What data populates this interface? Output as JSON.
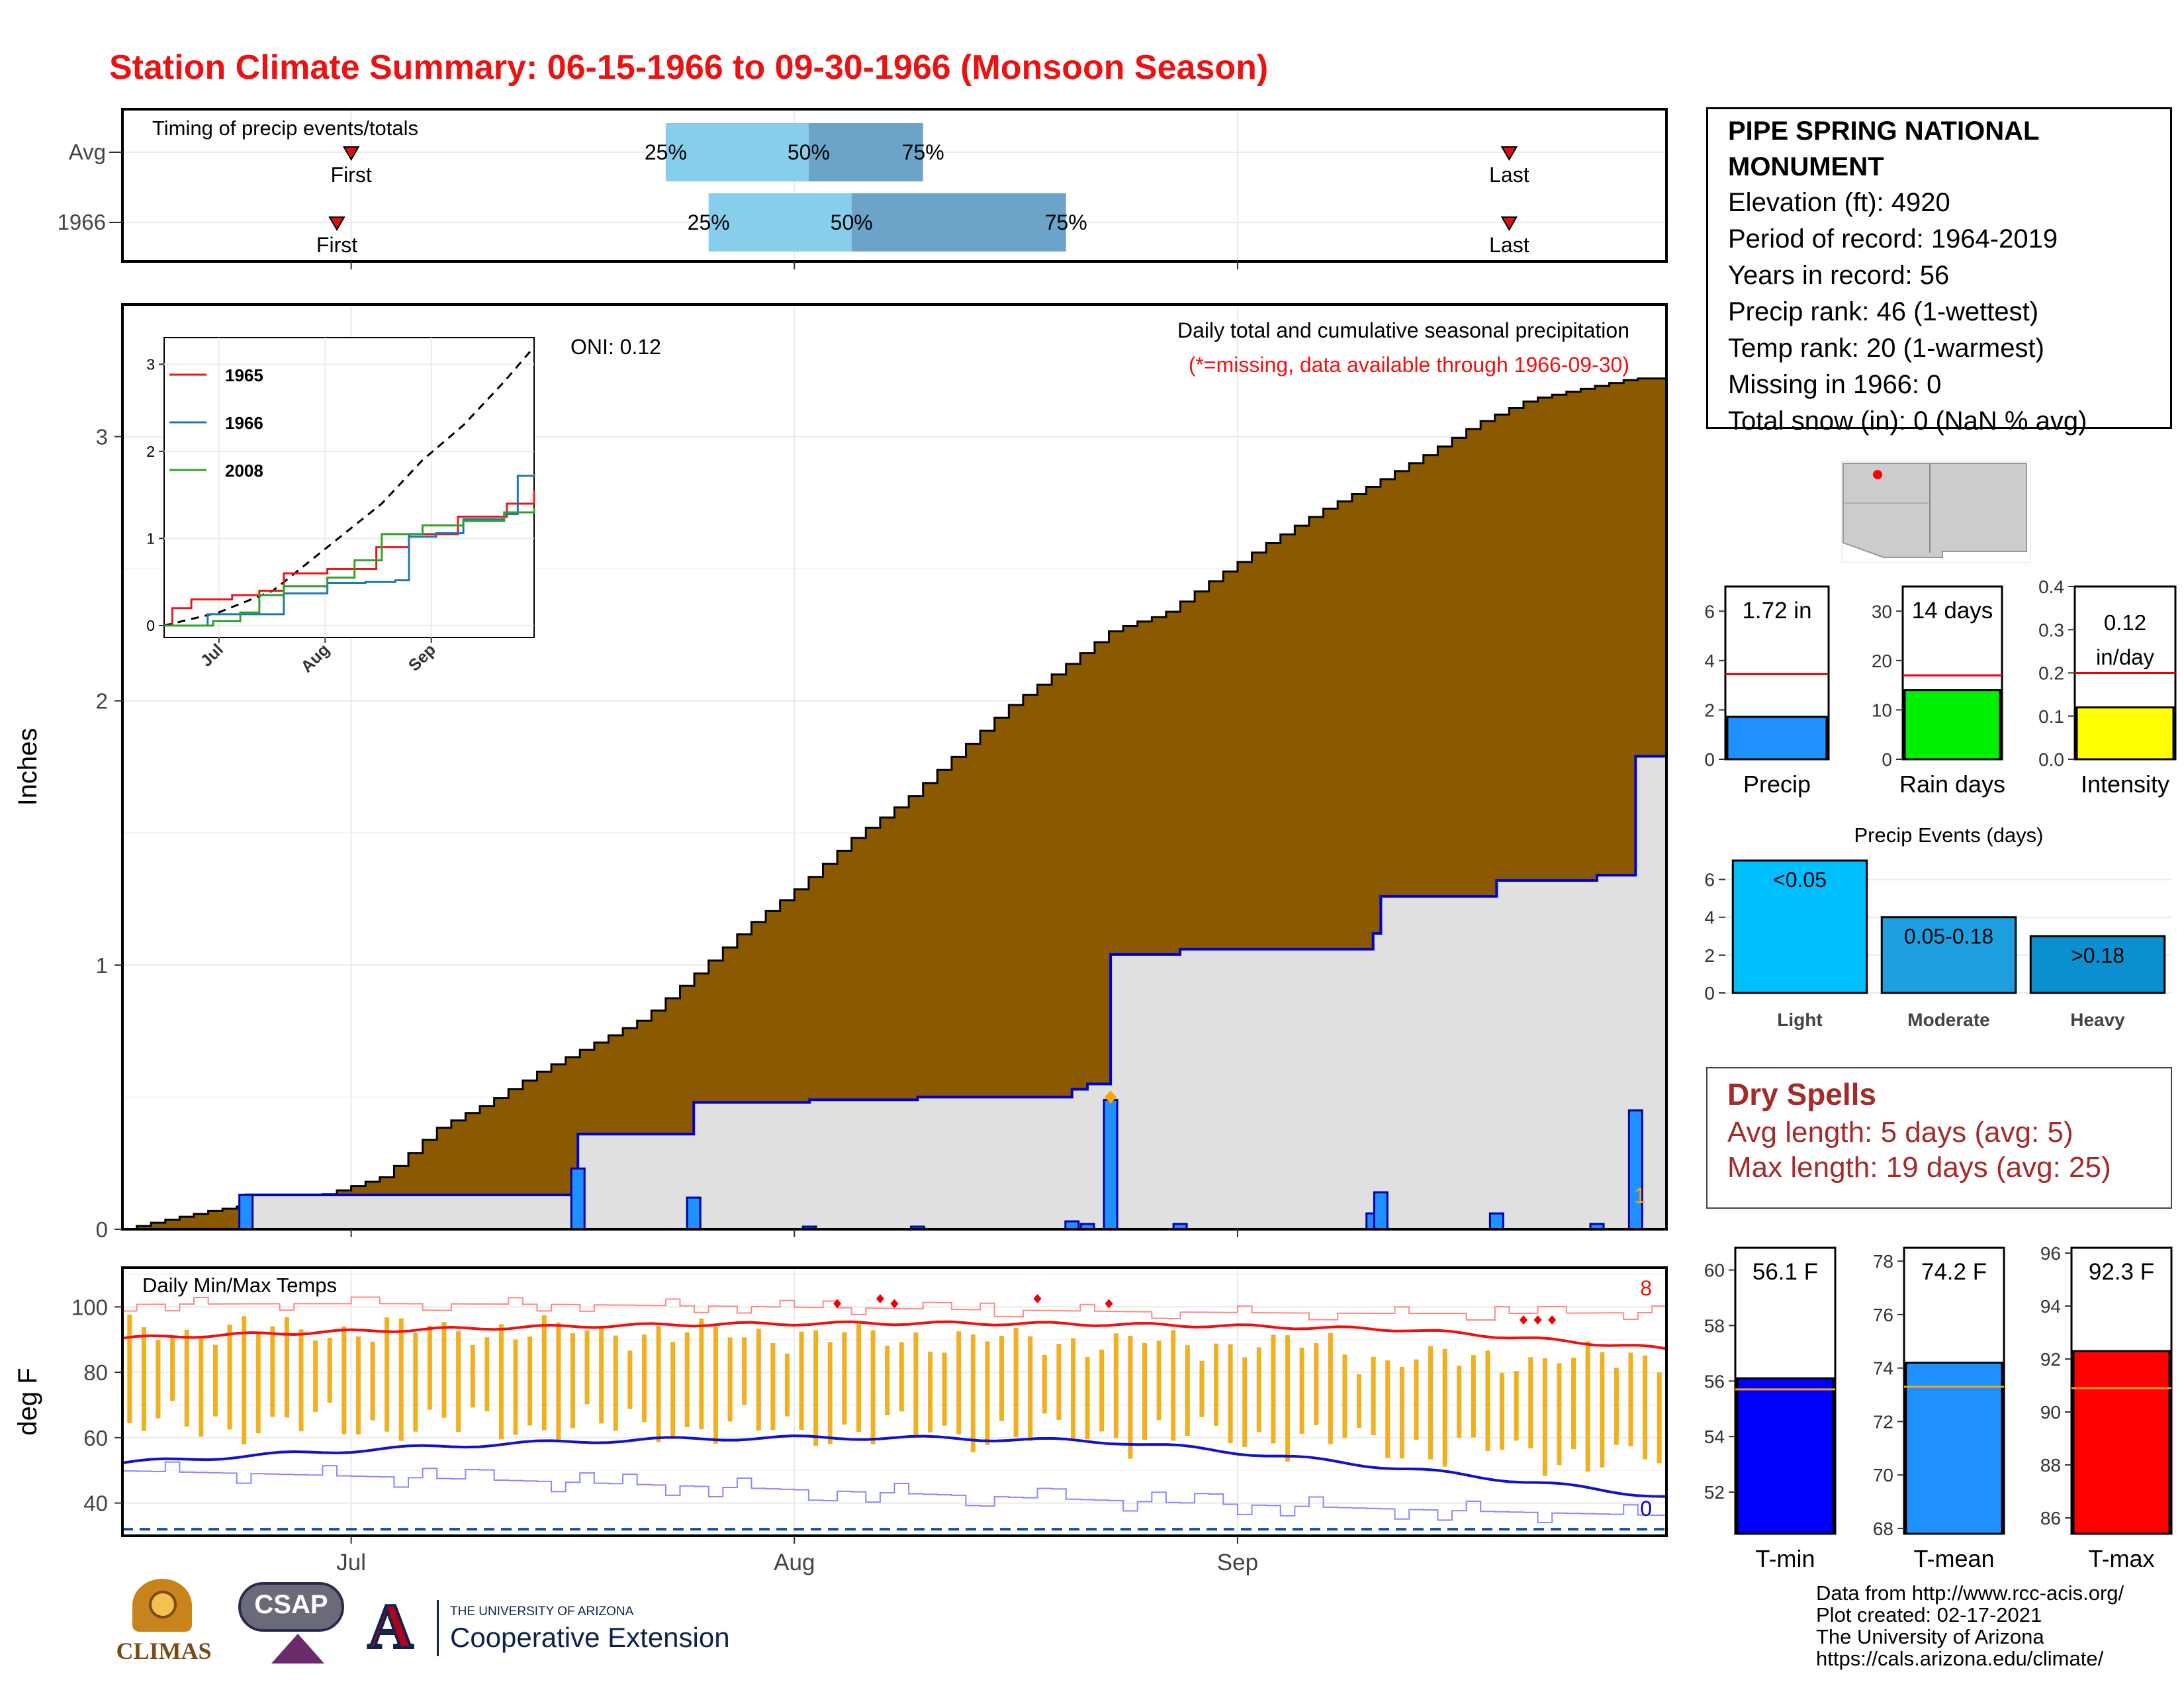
{
  "page": {
    "title": "Station Climate Summary: 06-15-1966 to 09-30-1966 (Monsoon Season)",
    "title_color": "#ee1111"
  },
  "chart_data": [
    {
      "id": "timing",
      "type": "bar",
      "title": "Timing of precip events/totals",
      "rows": [
        "Avg",
        "1966"
      ],
      "x_date_range": [
        "1966-06-15",
        "1966-09-30"
      ],
      "avg": {
        "first": "1966-07-01",
        "q25": "1966-07-23",
        "q50": "1966-08-02",
        "q75": "1966-08-10",
        "last": "1966-09-20"
      },
      "y1966": {
        "first": "1966-06-30",
        "q25": "1966-07-26",
        "q50": "1966-08-05",
        "q75": "1966-08-20",
        "last": "1966-09-20"
      },
      "labels": {
        "first": "First",
        "last": "Last",
        "q25": "25%",
        "q50": "50%",
        "q75": "75%"
      },
      "colors": {
        "light": "#87ceeb",
        "dark": "#6ba3c9",
        "marker": "#dd1111"
      }
    },
    {
      "id": "cumulative",
      "type": "area",
      "title": "Daily total and cumulative seasonal precipitation",
      "subtitle": "(*=missing, data available through 1966-09-30)",
      "oni_label": "ONI: 0.12",
      "ylabel": "Inches",
      "ylim": [
        0,
        3.5
      ],
      "yticks": [
        0,
        1,
        2,
        3
      ],
      "x_date_range": [
        "1966-06-15",
        "1966-09-30"
      ],
      "corner_value": "1",
      "avg_cumulative_knots": [
        [
          0,
          0
        ],
        [
          4,
          0.03
        ],
        [
          10,
          0.07
        ],
        [
          16,
          0.1
        ],
        [
          20,
          0.11
        ],
        [
          24,
          0.14
        ],
        [
          30,
          0.2
        ],
        [
          36,
          0.38
        ],
        [
          42,
          0.48
        ],
        [
          48,
          0.6
        ],
        [
          54,
          0.7
        ],
        [
          60,
          0.8
        ],
        [
          66,
          0.97
        ],
        [
          72,
          1.15
        ],
        [
          78,
          1.3
        ],
        [
          84,
          1.48
        ],
        [
          90,
          1.62
        ],
        [
          96,
          1.8
        ],
        [
          102,
          1.98
        ],
        [
          108,
          2.12
        ],
        [
          114,
          2.27
        ],
        [
          120,
          2.33
        ],
        [
          126,
          2.47
        ],
        [
          132,
          2.6
        ],
        [
          138,
          2.72
        ],
        [
          144,
          2.82
        ],
        [
          150,
          2.93
        ],
        [
          156,
          3.05
        ],
        [
          162,
          3.14
        ],
        [
          168,
          3.18
        ],
        [
          174,
          3.22
        ],
        [
          178,
          3.22
        ]
      ],
      "events_1966": [
        {
          "day": 16,
          "value": 0.13
        },
        {
          "day": 59,
          "value": 0.23
        },
        {
          "day": 74,
          "value": 0.12
        },
        {
          "day": 89,
          "value": 0.01
        },
        {
          "day": 103,
          "value": 0.01
        },
        {
          "day": 123,
          "value": 0.03
        },
        {
          "day": 125,
          "value": 0.02
        },
        {
          "day": 128,
          "value": 0.49
        },
        {
          "day": 137,
          "value": 0.02
        },
        {
          "day": 162,
          "value": 0.06
        },
        {
          "day": 163,
          "value": 0.14
        },
        {
          "day": 178,
          "value": 0.06
        },
        {
          "day": 191,
          "value": 0.02
        },
        {
          "day": 196,
          "value": 0.45
        }
      ],
      "missing_marker_day": 128,
      "colors": {
        "avg_fill": "#8b5a00",
        "year_fill": "#e0e0e0",
        "year_line": "#0000cc",
        "event_bar": "#1e90ff",
        "missing": "#ffa500"
      }
    },
    {
      "id": "inset",
      "type": "line",
      "x_labels": [
        "Jul",
        "Aug",
        "Sep"
      ],
      "yticks": [
        0,
        1,
        2,
        3
      ],
      "series": [
        {
          "name": "1965",
          "color": "#e31a1c",
          "knots": [
            [
              0,
              0
            ],
            [
              3,
              0.2
            ],
            [
              10,
              0.3
            ],
            [
              25,
              0.35
            ],
            [
              35,
              0.4
            ],
            [
              44,
              0.6
            ],
            [
              60,
              0.65
            ],
            [
              78,
              0.9
            ],
            [
              90,
              1.05
            ],
            [
              108,
              1.25
            ],
            [
              126,
              1.4
            ],
            [
              136,
              1.55
            ]
          ]
        },
        {
          "name": "1966",
          "color": "#1f78b4",
          "knots": [
            [
              0,
              0
            ],
            [
              16,
              0.13
            ],
            [
              35,
              0.13
            ],
            [
              44,
              0.37
            ],
            [
              60,
              0.49
            ],
            [
              74,
              0.5
            ],
            [
              85,
              0.52
            ],
            [
              90,
              1.02
            ],
            [
              100,
              1.06
            ],
            [
              110,
              1.22
            ],
            [
              125,
              1.28
            ],
            [
              130,
              1.72
            ],
            [
              136,
              1.74
            ]
          ]
        },
        {
          "name": "2008",
          "color": "#33a02c",
          "knots": [
            [
              0,
              0
            ],
            [
              18,
              0.05
            ],
            [
              28,
              0.15
            ],
            [
              35,
              0.35
            ],
            [
              44,
              0.45
            ],
            [
              60,
              0.55
            ],
            [
              70,
              0.75
            ],
            [
              80,
              1.05
            ],
            [
              95,
              1.15
            ],
            [
              110,
              1.2
            ],
            [
              125,
              1.3
            ],
            [
              136,
              1.35
            ]
          ]
        }
      ],
      "avg_knots": [
        [
          0,
          0
        ],
        [
          20,
          0.15
        ],
        [
          40,
          0.4
        ],
        [
          60,
          0.9
        ],
        [
          80,
          1.4
        ],
        [
          95,
          1.9
        ],
        [
          110,
          2.3
        ],
        [
          125,
          2.8
        ],
        [
          136,
          3.2
        ]
      ]
    },
    {
      "id": "temps",
      "type": "bar",
      "title": "Daily Min/Max Temps",
      "ylabel": "deg F",
      "yticks": [
        40,
        60,
        80,
        100
      ],
      "ylim": [
        30,
        112
      ],
      "x_labels": [
        "Jul",
        "Aug",
        "Sep"
      ],
      "x_label_days": [
        16,
        47,
        78
      ],
      "days": 108,
      "record_high_count": "8",
      "record_low_count": "0",
      "freeze_line": 32,
      "colors": {
        "bars": "#f0b020",
        "max_avg": "#ee1111",
        "min_avg": "#1111cc",
        "record_high": "#ff8888",
        "record_low": "#8888ff"
      }
    },
    {
      "id": "precip_gauge",
      "type": "bar",
      "label": "Precip",
      "value": 1.72,
      "value_label": "1.72 in",
      "avg": 3.45,
      "ylim": [
        0,
        7
      ],
      "yticks": [
        0,
        2,
        4,
        6
      ],
      "color": "#1e90ff"
    },
    {
      "id": "raindays_gauge",
      "type": "bar",
      "label": "Rain days",
      "value": 14,
      "value_label": "14 days",
      "avg": 17,
      "ylim": [
        0,
        35
      ],
      "yticks": [
        0,
        10,
        20,
        30
      ],
      "color": "#00ee00"
    },
    {
      "id": "intensity_gauge",
      "type": "bar",
      "label": "Intensity",
      "value": 0.12,
      "value_label": "0.12 in/day",
      "avg": 0.2,
      "ylim": [
        0,
        0.4
      ],
      "yticks": [
        "0.0",
        "0.1",
        "0.2",
        "0.3",
        "0.4"
      ],
      "color": "#ffff00"
    },
    {
      "id": "events",
      "type": "bar",
      "title": "Precip Events (days)",
      "categories": [
        "Light",
        "Moderate",
        "Heavy"
      ],
      "bar_labels": [
        "<0.05",
        "0.05-0.18",
        ">0.18"
      ],
      "values": [
        7,
        4,
        3
      ],
      "ylim": [
        0,
        7
      ],
      "yticks": [
        0,
        2,
        4,
        6
      ],
      "colors": [
        "#00bfff",
        "#1ea0e0",
        "#0a90d0"
      ]
    },
    {
      "id": "tmin_gauge",
      "type": "bar",
      "label": "T-min",
      "value": 56.1,
      "value_label": "56.1 F",
      "avg": 55.7,
      "ylim": [
        50.5,
        60.8
      ],
      "yticks": [
        52,
        54,
        56,
        58,
        60
      ],
      "color": "#0000ff"
    },
    {
      "id": "tmean_gauge",
      "type": "bar",
      "label": "T-mean",
      "value": 74.2,
      "value_label": "74.2 F",
      "avg": 73.3,
      "ylim": [
        67.8,
        78.5
      ],
      "yticks": [
        68,
        70,
        72,
        74,
        76,
        78
      ],
      "color": "#1e90ff"
    },
    {
      "id": "tmax_gauge",
      "type": "bar",
      "label": "T-max",
      "value": 92.3,
      "value_label": "92.3 F",
      "avg": 90.9,
      "ylim": [
        85.4,
        96.2
      ],
      "yticks": [
        86,
        88,
        90,
        92,
        94,
        96
      ],
      "color": "#ff0000"
    }
  ],
  "station": {
    "name": "PIPE SPRING NATIONAL MONUMENT",
    "elevation": "Elevation (ft): 4920",
    "period": "Period of record: 1964-2019",
    "years": "Years in record: 56",
    "precip_rank": "Precip rank: 46 (1-wettest)",
    "temp_rank": "Temp rank: 20 (1-warmest)",
    "missing": "Missing in 1966: 0",
    "snow": "Total snow (in): 0 (NaN % avg)"
  },
  "dry_spells": {
    "title": "Dry Spells",
    "avg_length": "Avg length: 5 days (avg: 5)",
    "max_length": "Max length: 19 days (avg: 25)",
    "color": "#a52a2a"
  },
  "footer": {
    "line1": "Data from http://www.rcc-acis.org/",
    "line2": "Plot created: 02-17-2021",
    "line3": "The University of Arizona",
    "line4": "https://cals.arizona.edu/climate/",
    "ua_small": "THE UNIVERSITY OF ARIZONA",
    "ua_big": "Cooperative Extension",
    "climas": "CLIMAS",
    "csap": "CSAP"
  }
}
